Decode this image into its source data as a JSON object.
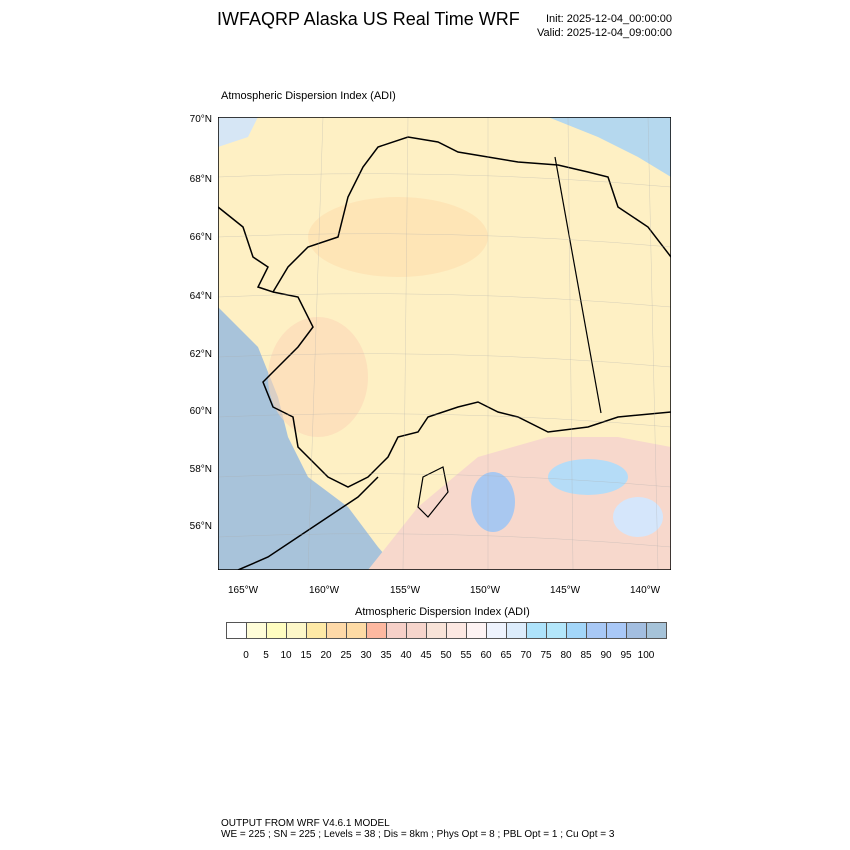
{
  "header": {
    "title": "IWFAQRP Alaska US Real Time WRF",
    "init": "Init: 2025-12-04_00:00:00",
    "valid": "Valid: 2025-12-04_09:00:00"
  },
  "map": {
    "subtitle": "Atmospheric Dispersion Index   (ADI)",
    "lat_labels": [
      "70°N",
      "68°N",
      "66°N",
      "64°N",
      "62°N",
      "60°N",
      "58°N",
      "56°N"
    ],
    "lon_labels": [
      "165°W",
      "160°W",
      "155°W",
      "150°W",
      "145°W",
      "140°W"
    ]
  },
  "colorbar": {
    "title": "Atmospheric Dispersion Index  (ADI)",
    "labels": [
      "0",
      "5",
      "10",
      "15",
      "20",
      "25",
      "30",
      "35",
      "40",
      "45",
      "50",
      "55",
      "60",
      "65",
      "70",
      "75",
      "80",
      "85",
      "90",
      "95",
      "100"
    ],
    "colors": [
      "#ffffff",
      "#fffdd8",
      "#fffdc0",
      "#fdf7c8",
      "#fee9a6",
      "#fed9a8",
      "#fedba5",
      "#fdb8a0",
      "#f6d0c8",
      "#f6d5cc",
      "#f8e3d8",
      "#fce8e2",
      "#fdf3f3",
      "#eef3fd",
      "#dcecfb",
      "#aee3fb",
      "#b3e6fa",
      "#a3d6f9",
      "#a8c8f5",
      "#a9c8f7",
      "#a3bee0",
      "#a6c3d9"
    ]
  },
  "footer": {
    "line1": "OUTPUT FROM WRF V4.6.1 MODEL",
    "line2": "WE = 225 ; SN = 225 ; Levels = 38 ; Dis = 8km ; Phys Opt = 8 ; PBL Opt = 1 ; Cu Opt = 3"
  }
}
